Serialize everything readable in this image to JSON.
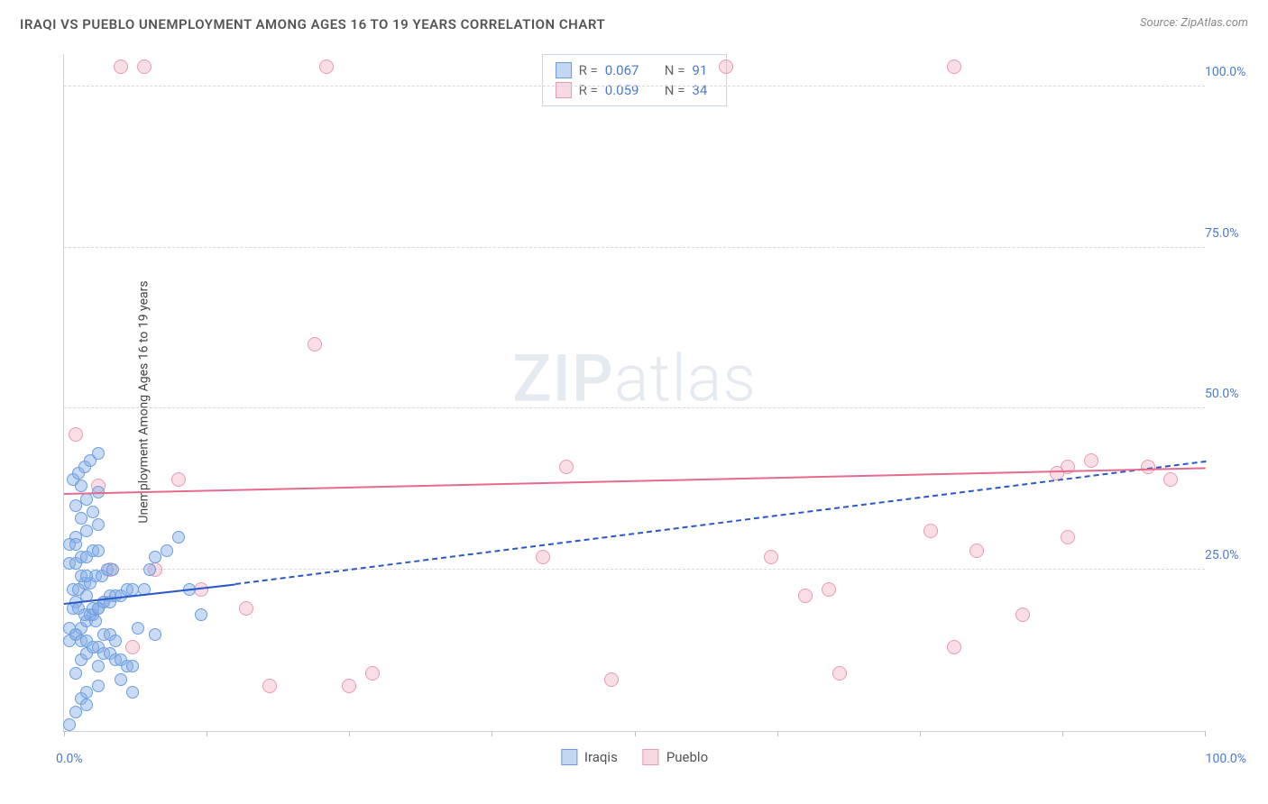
{
  "header": {
    "title": "IRAQI VS PUEBLO UNEMPLOYMENT AMONG AGES 16 TO 19 YEARS CORRELATION CHART",
    "source": "Source: ZipAtlas.com"
  },
  "watermark": {
    "bold": "ZIP",
    "light": "atlas"
  },
  "chart": {
    "type": "scatter",
    "ylabel": "Unemployment Among Ages 16 to 19 years",
    "xlim": [
      0,
      100
    ],
    "ylim": [
      0,
      105
    ],
    "xticks": [
      0,
      12.5,
      25,
      37.5,
      50,
      62.5,
      75,
      87.5,
      100
    ],
    "xtick_labels": {
      "0": "0.0%",
      "100": "100.0%"
    },
    "yticks": [
      25,
      50,
      75,
      100
    ],
    "ytick_labels": [
      "25.0%",
      "50.0%",
      "75.0%",
      "100.0%"
    ],
    "grid_color": "#d8d8d8",
    "label_color": "#4a7bd0",
    "background": "#ffffff",
    "series": {
      "iraqis": {
        "label": "Iraqis",
        "color_fill": "rgba(135,175,230,0.45)",
        "color_stroke": "#6a9de0",
        "marker_size": 14,
        "R": "0.067",
        "N": "91",
        "trend": {
          "x1": 0,
          "y1": 20,
          "x2": 15,
          "y2": 23,
          "dash_to_x": 100,
          "dash_to_y": 42,
          "color": "#2a59c7"
        },
        "points": [
          [
            0.5,
            1
          ],
          [
            1,
            3
          ],
          [
            1.5,
            5
          ],
          [
            2,
            6
          ],
          [
            2,
            4
          ],
          [
            3,
            7
          ],
          [
            1,
            9
          ],
          [
            1.5,
            11
          ],
          [
            2,
            12
          ],
          [
            3,
            10
          ],
          [
            0.5,
            14
          ],
          [
            1,
            15
          ],
          [
            1.5,
            16
          ],
          [
            2,
            17
          ],
          [
            2.5,
            18
          ],
          [
            3,
            19
          ],
          [
            3.5,
            20
          ],
          [
            4,
            21
          ],
          [
            1,
            20
          ],
          [
            2,
            21
          ],
          [
            0.8,
            22
          ],
          [
            1.3,
            22
          ],
          [
            1.8,
            23
          ],
          [
            2.3,
            23
          ],
          [
            2.8,
            24
          ],
          [
            3.3,
            24
          ],
          [
            3.8,
            25
          ],
          [
            4.3,
            25
          ],
          [
            0.5,
            26
          ],
          [
            1,
            26
          ],
          [
            1.5,
            27
          ],
          [
            2,
            27
          ],
          [
            2.5,
            28
          ],
          [
            3,
            28
          ],
          [
            3.5,
            20
          ],
          [
            4,
            20
          ],
          [
            4.5,
            21
          ],
          [
            5,
            21
          ],
          [
            5.5,
            22
          ],
          [
            6,
            22
          ],
          [
            0.8,
            19
          ],
          [
            1.3,
            19
          ],
          [
            1.8,
            18
          ],
          [
            2.3,
            18
          ],
          [
            2.8,
            17
          ],
          [
            0.5,
            16
          ],
          [
            1,
            15
          ],
          [
            1.5,
            14
          ],
          [
            2,
            14
          ],
          [
            2.5,
            13
          ],
          [
            3,
            13
          ],
          [
            3.5,
            12
          ],
          [
            4,
            12
          ],
          [
            4.5,
            11
          ],
          [
            5,
            11
          ],
          [
            5.5,
            10
          ],
          [
            6,
            10
          ],
          [
            6.5,
            16
          ],
          [
            7,
            22
          ],
          [
            7.5,
            25
          ],
          [
            8,
            27
          ],
          [
            9,
            28
          ],
          [
            10,
            30
          ],
          [
            11,
            22
          ],
          [
            12,
            18
          ],
          [
            1,
            30
          ],
          [
            2,
            31
          ],
          [
            3,
            32
          ],
          [
            1.5,
            33
          ],
          [
            2.5,
            34
          ],
          [
            1,
            35
          ],
          [
            2,
            36
          ],
          [
            3,
            37
          ],
          [
            1.5,
            38
          ],
          [
            0.8,
            39
          ],
          [
            1.3,
            40
          ],
          [
            1.8,
            41
          ],
          [
            2.3,
            42
          ],
          [
            0.5,
            29
          ],
          [
            1,
            29
          ],
          [
            1.5,
            24
          ],
          [
            2,
            24
          ],
          [
            2.5,
            19
          ],
          [
            3,
            19
          ],
          [
            3.5,
            15
          ],
          [
            4,
            15
          ],
          [
            4.5,
            14
          ],
          [
            5,
            8
          ],
          [
            6,
            6
          ],
          [
            8,
            15
          ],
          [
            3,
            43
          ]
        ]
      },
      "pueblo": {
        "label": "Pueblo",
        "color_fill": "rgba(240,160,180,0.35)",
        "color_stroke": "#e89ab0",
        "marker_size": 16,
        "R": "0.059",
        "N": "34",
        "trend": {
          "x1": 0,
          "y1": 37,
          "x2": 100,
          "y2": 41,
          "color": "#e46b8e"
        },
        "points": [
          [
            5,
            103
          ],
          [
            7,
            103
          ],
          [
            23,
            103
          ],
          [
            58,
            103
          ],
          [
            78,
            103
          ],
          [
            1,
            46
          ],
          [
            3,
            38
          ],
          [
            6,
            13
          ],
          [
            8,
            25
          ],
          [
            10,
            39
          ],
          [
            16,
            19
          ],
          [
            18,
            7
          ],
          [
            22,
            60
          ],
          [
            25,
            7
          ],
          [
            27,
            9
          ],
          [
            42,
            27
          ],
          [
            44,
            41
          ],
          [
            48,
            8
          ],
          [
            62,
            27
          ],
          [
            65,
            21
          ],
          [
            67,
            22
          ],
          [
            68,
            9
          ],
          [
            76,
            31
          ],
          [
            78,
            13
          ],
          [
            80,
            28
          ],
          [
            84,
            18
          ],
          [
            87,
            40
          ],
          [
            88,
            41
          ],
          [
            88,
            30
          ],
          [
            90,
            42
          ],
          [
            95,
            41
          ],
          [
            97,
            39
          ],
          [
            4,
            25
          ],
          [
            12,
            22
          ]
        ]
      }
    }
  },
  "legend_bottom": [
    {
      "swatch": "blue",
      "label": "Iraqis"
    },
    {
      "swatch": "pink",
      "label": "Pueblo"
    }
  ]
}
